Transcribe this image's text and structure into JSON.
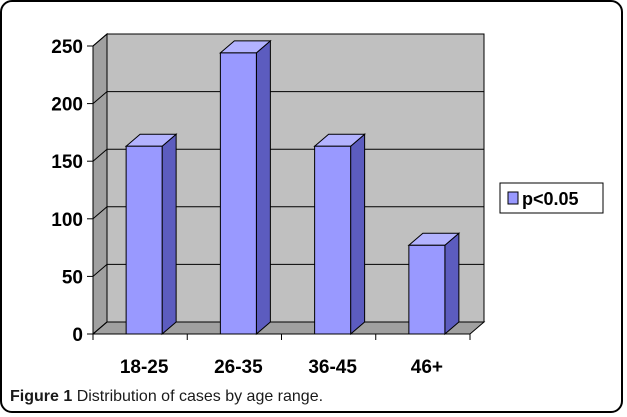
{
  "chart_data": {
    "type": "bar",
    "categories": [
      "18-25",
      "26-35",
      "36-45",
      "46+"
    ],
    "series": [
      {
        "name": "p<0.05",
        "values": [
          163,
          244,
          163,
          77
        ],
        "color": "#9999ff"
      }
    ],
    "ylim": [
      0,
      250
    ],
    "yticks": [
      0,
      50,
      100,
      150,
      200,
      250
    ],
    "grid": true,
    "three_d": true,
    "legend": "right",
    "colors": {
      "bar_front": "#9999ff",
      "bar_side": "#5c5cbf",
      "bar_top": "#b3b3ff",
      "plot_back": "#c0c0c0",
      "plot_floor": "#a0a0a0",
      "outline": "#000000"
    }
  },
  "caption": {
    "label": "Figure 1",
    "text": "Distribution of cases by age range."
  }
}
